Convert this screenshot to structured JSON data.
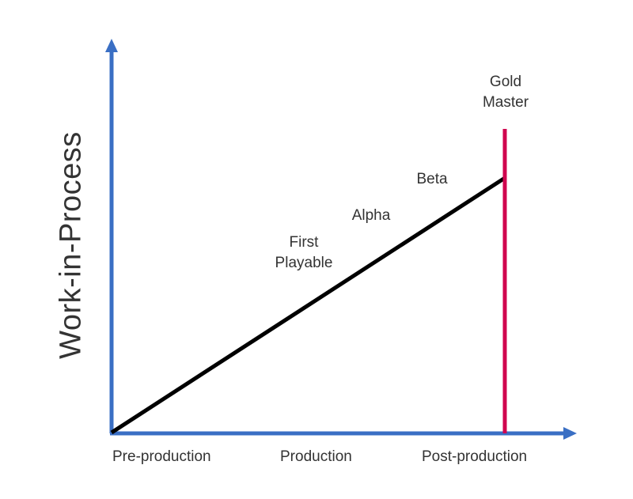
{
  "diagram": {
    "y_axis_title": "Work-in-Process",
    "x_axis_labels": [
      "Pre-production",
      "Production",
      "Post-production"
    ],
    "milestones": [
      {
        "lines": [
          "First",
          "Playable"
        ]
      },
      {
        "lines": [
          "Alpha"
        ]
      },
      {
        "lines": [
          "Beta"
        ]
      },
      {
        "lines": [
          "Gold",
          "Master"
        ]
      }
    ],
    "colors": {
      "axis": "#3a6fc4",
      "progress_line": "#000000",
      "gold_master_line": "#d0064f",
      "text": "#333333"
    }
  }
}
